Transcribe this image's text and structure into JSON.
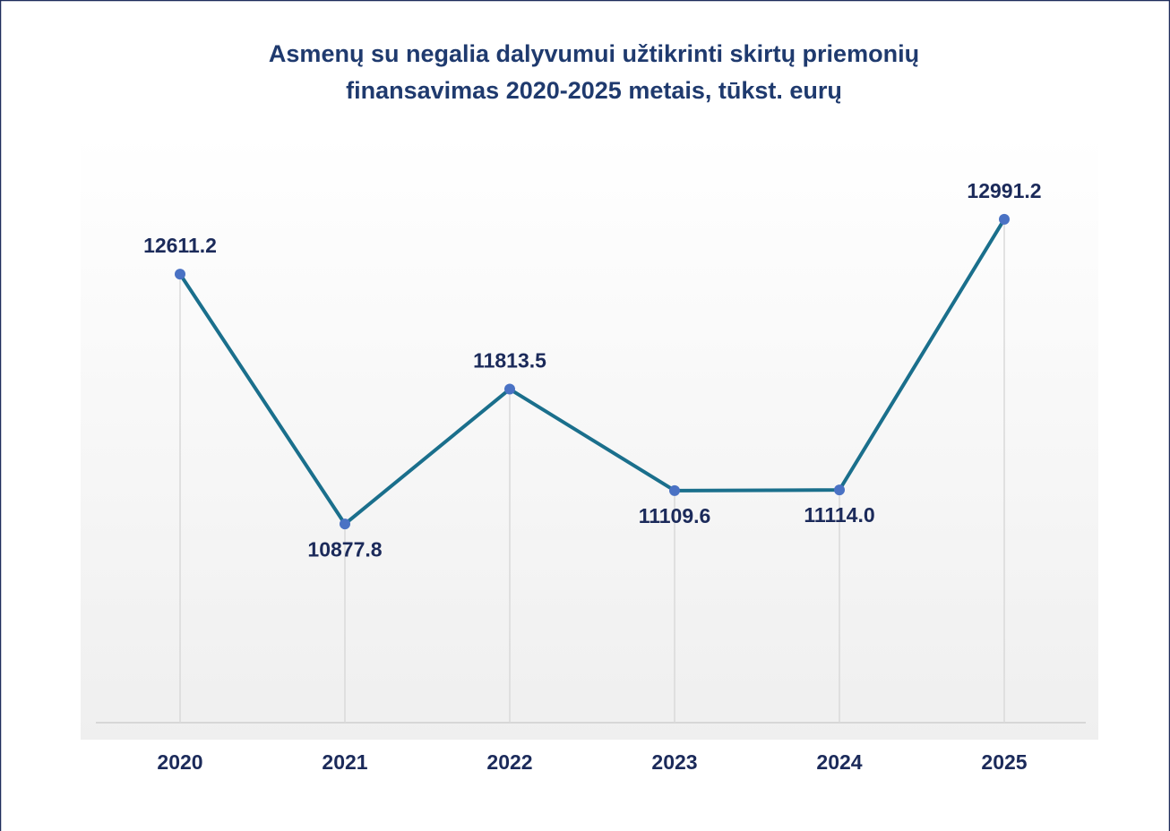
{
  "chart_data": {
    "type": "line",
    "title": [
      "Asmenų su negalia dalyvumui užtikrinti skirtų priemonių",
      "finansavimas 2020-2025 metais, tūkst. eurų"
    ],
    "categories": [
      "2020",
      "2021",
      "2022",
      "2023",
      "2024",
      "2025"
    ],
    "values": [
      12611.2,
      10877.8,
      11813.5,
      11109.6,
      11114.0,
      12991.2
    ],
    "value_labels": [
      "12611.2",
      "10877.8",
      "11813.5",
      "11109.6",
      "11114.0",
      "12991.2"
    ],
    "color": "#1a6f8c",
    "marker_color": "#4a72c4",
    "ylim": [
      9500,
      13500
    ],
    "grid": true
  }
}
